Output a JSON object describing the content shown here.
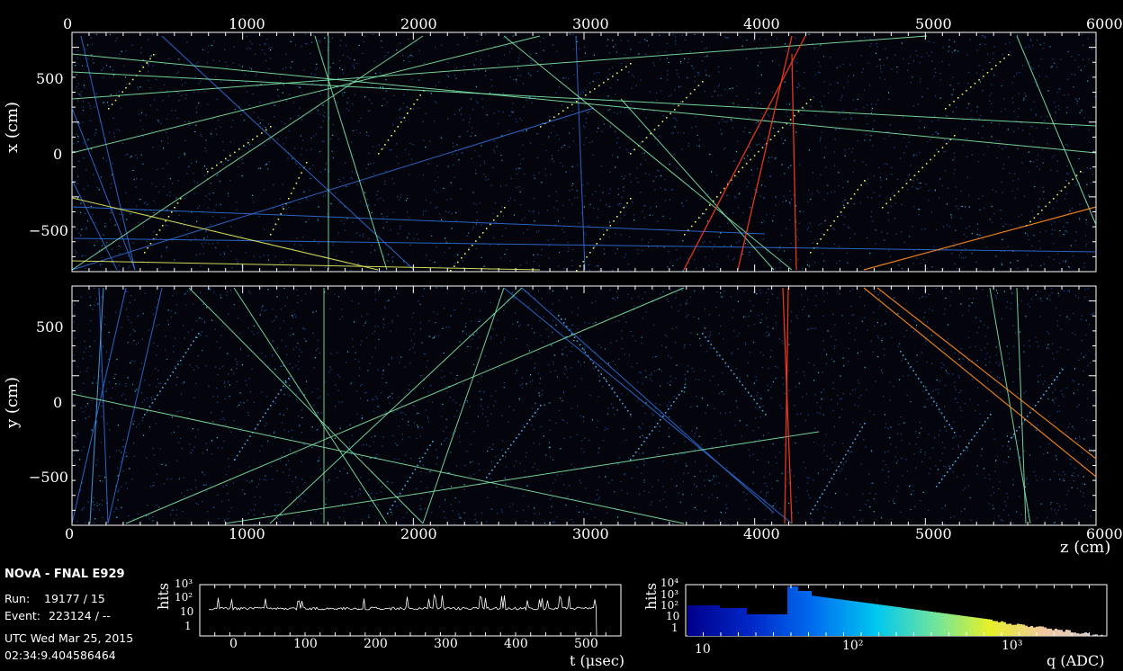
{
  "xz_view": {
    "ylabel": "x (cm)",
    "top_ticks": [
      "0",
      "1000",
      "2000",
      "3000",
      "4000",
      "5000",
      "6000"
    ],
    "y_ticks": [
      "500",
      "0",
      "−500"
    ]
  },
  "yz_view": {
    "ylabel": "y (cm)",
    "y_ticks": [
      "500",
      "0",
      "−500"
    ],
    "bottom_ticks": [
      "0",
      "1000",
      "2000",
      "3000",
      "4000",
      "5000",
      "6000"
    ],
    "xlabel": "z (cm)"
  },
  "info": {
    "title": "NOvA - FNAL E929",
    "run_label": "Run:",
    "run_value": "19177 / 15",
    "event_label": "Event:",
    "event_value": "223124 / --",
    "utc_line": "UTC Wed Mar 25, 2015",
    "time_line": "02:34:9.404586464"
  },
  "time_hist": {
    "ylabel": "hits",
    "y_ticks": [
      "10³",
      "10²",
      "10",
      "1"
    ],
    "x_ticks": [
      "0",
      "100",
      "200",
      "300",
      "400",
      "500"
    ],
    "xlabel": "t (μsec)"
  },
  "charge_hist": {
    "ylabel": "hits",
    "y_ticks": [
      "10⁴",
      "10³",
      "10²",
      "10",
      "1"
    ],
    "x_ticks": [
      "10",
      "10²",
      "10³"
    ],
    "xlabel": "q (ADC)"
  },
  "colors": {
    "background": "#000000",
    "frame": "#ffffff",
    "track_blue": "#2f6fd8",
    "track_green": "#7ee8a8",
    "track_red": "#ff3b1f",
    "track_orange": "#ff8a1e",
    "track_yellow": "#e8f060"
  }
}
